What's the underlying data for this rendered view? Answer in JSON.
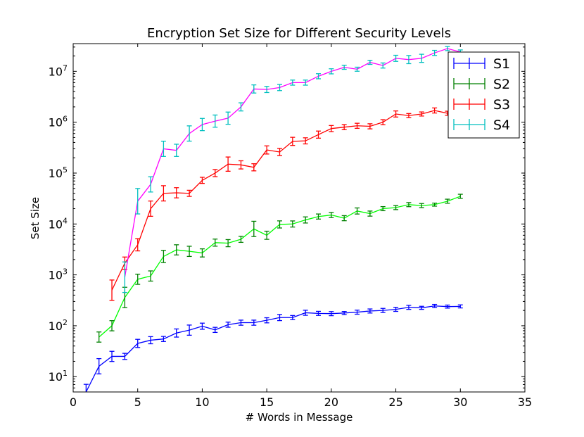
{
  "chart_data": {
    "type": "line",
    "title": "Encryption Set Size for Different Security Levels",
    "xlabel": "# Words in Message",
    "ylabel": "Set Size",
    "xlim": [
      0,
      35
    ],
    "ylim": [
      5,
      35000000
    ],
    "yscale": "log",
    "x_ticks": [
      "0",
      "5",
      "10",
      "15",
      "20",
      "25",
      "30",
      "35"
    ],
    "y_ticks": [
      {
        "value": 10,
        "exp": "1"
      },
      {
        "value": 100,
        "exp": "2"
      },
      {
        "value": 1000,
        "exp": "3"
      },
      {
        "value": 10000,
        "exp": "4"
      },
      {
        "value": 100000,
        "exp": "5"
      },
      {
        "value": 1000000,
        "exp": "6"
      },
      {
        "value": 10000000,
        "exp": "7"
      }
    ],
    "grid": false,
    "legend_position": "top-right",
    "series": [
      {
        "name": "S1",
        "line_color": "#0000ff",
        "err_color": "#0000ff",
        "x": [
          1,
          2,
          3,
          4,
          5,
          6,
          7,
          8,
          9,
          10,
          11,
          12,
          13,
          14,
          15,
          16,
          17,
          18,
          19,
          20,
          21,
          22,
          23,
          24,
          25,
          26,
          27,
          28,
          29,
          30
        ],
        "y": [
          5,
          16,
          25,
          25,
          45,
          52,
          55,
          72,
          82,
          98,
          83,
          105,
          115,
          115,
          128,
          145,
          145,
          180,
          175,
          173,
          178,
          185,
          195,
          200,
          210,
          230,
          225,
          245,
          238,
          240
        ],
        "err": [
          0.15,
          0.15,
          0.1,
          0.06,
          0.08,
          0.07,
          0.05,
          0.08,
          0.1,
          0.06,
          0.05,
          0.05,
          0.05,
          0.05,
          0.05,
          0.06,
          0.04,
          0.05,
          0.04,
          0.04,
          0.03,
          0.04,
          0.04,
          0.04,
          0.04,
          0.04,
          0.03,
          0.03,
          0.03,
          0.03
        ]
      },
      {
        "name": "S2",
        "line_color": "#00ff00",
        "err_color": "#008000",
        "x": [
          2,
          3,
          4,
          5,
          6,
          7,
          8,
          9,
          10,
          11,
          12,
          13,
          14,
          15,
          16,
          17,
          18,
          19,
          20,
          21,
          22,
          23,
          24,
          25,
          26,
          27,
          28,
          29,
          30
        ],
        "y": [
          60,
          100,
          360,
          820,
          950,
          2300,
          3100,
          2900,
          2700,
          4300,
          4200,
          5000,
          8000,
          6000,
          9800,
          10000,
          12000,
          14000,
          15000,
          13000,
          18000,
          16000,
          20000,
          21000,
          24000,
          23000,
          24000,
          28000,
          35000
        ],
        "err": [
          0.1,
          0.1,
          0.2,
          0.1,
          0.1,
          0.12,
          0.1,
          0.1,
          0.08,
          0.07,
          0.07,
          0.06,
          0.15,
          0.08,
          0.07,
          0.06,
          0.06,
          0.05,
          0.05,
          0.05,
          0.06,
          0.05,
          0.04,
          0.04,
          0.04,
          0.04,
          0.03,
          0.04,
          0.04
        ]
      },
      {
        "name": "S3",
        "line_color": "#ff0000",
        "err_color": "#ff0000",
        "x": [
          3,
          4,
          5,
          6,
          7,
          8,
          9,
          10,
          11,
          12,
          13,
          14,
          15,
          16,
          17,
          18,
          19,
          20,
          21,
          22,
          23,
          24,
          25,
          26,
          27,
          28,
          29,
          30
        ],
        "y": [
          500,
          1700,
          3900,
          20000,
          40000,
          41000,
          40000,
          72000,
          100000,
          150000,
          145000,
          130000,
          285000,
          260000,
          420000,
          430000,
          570000,
          750000,
          800000,
          850000,
          830000,
          1000000,
          1450000,
          1350000,
          1450000,
          1700000,
          1500000,
          1550000
        ],
        "err": [
          0.2,
          0.12,
          0.12,
          0.15,
          0.15,
          0.1,
          0.06,
          0.06,
          0.07,
          0.14,
          0.08,
          0.07,
          0.08,
          0.07,
          0.08,
          0.06,
          0.07,
          0.06,
          0.05,
          0.05,
          0.05,
          0.05,
          0.06,
          0.04,
          0.04,
          0.05,
          0.04,
          0.04
        ]
      },
      {
        "name": "S4",
        "line_color": "#ff00ff",
        "err_color": "#00bfbf",
        "x": [
          4,
          5,
          6,
          7,
          8,
          9,
          10,
          11,
          12,
          13,
          14,
          15,
          16,
          17,
          18,
          19,
          20,
          21,
          22,
          23,
          24,
          25,
          26,
          27,
          28,
          29,
          30
        ],
        "y": [
          900,
          28000,
          60000,
          300000,
          280000,
          600000,
          900000,
          1050000,
          1200000,
          2000000,
          4500000,
          4400000,
          4800000,
          6000000,
          6000000,
          8000000,
          10000000,
          12000000,
          11000000,
          15000000,
          13000000,
          18000000,
          17000000,
          18000000,
          23000000,
          28000000,
          24000000
        ],
        "err": [
          0.3,
          0.25,
          0.15,
          0.15,
          0.12,
          0.15,
          0.12,
          0.12,
          0.12,
          0.08,
          0.08,
          0.06,
          0.06,
          0.05,
          0.05,
          0.05,
          0.05,
          0.04,
          0.04,
          0.04,
          0.05,
          0.06,
          0.08,
          0.08,
          0.05,
          0.04,
          0.04
        ]
      }
    ]
  }
}
